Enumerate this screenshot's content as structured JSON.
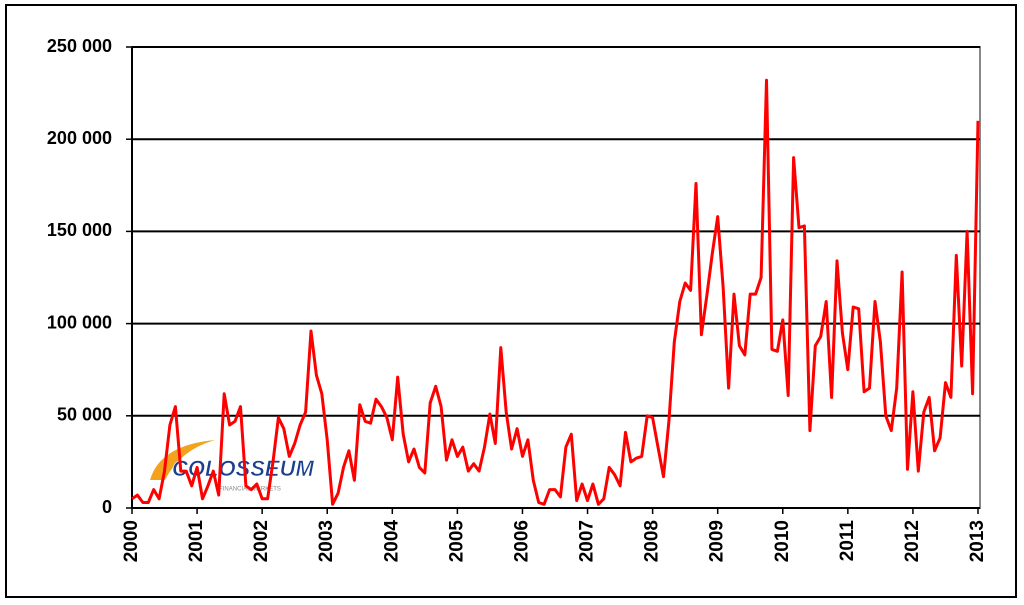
{
  "chart_data": {
    "type": "line",
    "watermark": {
      "name": "COLOSSEUM",
      "tagline": "FINANCIAL MARKETS"
    },
    "xlim": [
      2000,
      2013
    ],
    "xticks": [
      2000,
      2001,
      2002,
      2003,
      2004,
      2005,
      2006,
      2007,
      2008,
      2009,
      2010,
      2011,
      2012,
      2013
    ],
    "ylim": [
      0,
      250000
    ],
    "yticks": [
      0,
      {
        "value": 50000,
        "label": "50 000"
      },
      {
        "value": 100000,
        "label": "100 000"
      },
      {
        "value": 150000,
        "label": "150 000"
      },
      {
        "value": 200000,
        "label": "200 000"
      },
      {
        "value": 250000,
        "label": "250 000"
      }
    ],
    "grid": true,
    "series": [
      {
        "color": "#ff0000",
        "x": [
          2000,
          2000.083,
          2000.167,
          2000.25,
          2000.333,
          2000.417,
          2000.5,
          2000.583,
          2000.667,
          2000.75,
          2000.833,
          2000.917,
          2001,
          2001.083,
          2001.167,
          2001.25,
          2001.333,
          2001.417,
          2001.5,
          2001.583,
          2001.667,
          2001.75,
          2001.833,
          2001.917,
          2002,
          2002.083,
          2002.167,
          2002.25,
          2002.333,
          2002.417,
          2002.5,
          2002.583,
          2002.667,
          2002.75,
          2002.833,
          2002.917,
          2003,
          2003.083,
          2003.167,
          2003.25,
          2003.333,
          2003.417,
          2003.5,
          2003.583,
          2003.667,
          2003.75,
          2003.833,
          2003.917,
          2004,
          2004.083,
          2004.167,
          2004.25,
          2004.333,
          2004.417,
          2004.5,
          2004.583,
          2004.667,
          2004.75,
          2004.833,
          2004.917,
          2005,
          2005.083,
          2005.167,
          2005.25,
          2005.333,
          2005.417,
          2005.5,
          2005.583,
          2005.667,
          2005.75,
          2005.833,
          2005.917,
          2006,
          2006.083,
          2006.167,
          2006.25,
          2006.333,
          2006.417,
          2006.5,
          2006.583,
          2006.667,
          2006.75,
          2006.833,
          2006.917,
          2007,
          2007.083,
          2007.167,
          2007.25,
          2007.333,
          2007.417,
          2007.5,
          2007.583,
          2007.667,
          2007.75,
          2007.833,
          2007.917,
          2008,
          2008.083,
          2008.167,
          2008.25,
          2008.333,
          2008.417,
          2008.5,
          2008.583,
          2008.667,
          2008.75,
          2008.833,
          2008.917,
          2009,
          2009.083,
          2009.167,
          2009.25,
          2009.333,
          2009.417,
          2009.5,
          2009.583,
          2009.667,
          2009.75,
          2009.833,
          2009.917,
          2010,
          2010.083,
          2010.167,
          2010.25,
          2010.333,
          2010.417,
          2010.5,
          2010.583,
          2010.667,
          2010.75,
          2010.833,
          2010.917,
          2011,
          2011.083,
          2011.167,
          2011.25,
          2011.333,
          2011.417,
          2011.5,
          2011.583,
          2011.667,
          2011.75,
          2011.833,
          2011.917,
          2012,
          2012.083,
          2012.167,
          2012.25,
          2012.333,
          2012.417,
          2012.5,
          2012.583,
          2012.667,
          2012.75,
          2012.833,
          2012.917,
          2013
        ],
        "values": [
          5000,
          7000,
          3000,
          3000,
          10000,
          5000,
          20000,
          45000,
          55000,
          20000,
          20000,
          12000,
          22000,
          5000,
          12000,
          20000,
          7000,
          62000,
          45000,
          47000,
          55000,
          12000,
          10000,
          13000,
          5000,
          5000,
          25000,
          49000,
          43000,
          28000,
          35000,
          45000,
          52000,
          96000,
          72000,
          62000,
          37000,
          2000,
          8000,
          22000,
          31000,
          15000,
          56000,
          47000,
          46000,
          59000,
          55000,
          49000,
          37000,
          71000,
          40000,
          25000,
          32000,
          22000,
          19000,
          57000,
          66000,
          55000,
          26000,
          37000,
          28000,
          33000,
          20000,
          24000,
          20000,
          33000,
          51000,
          35000,
          87000,
          52000,
          32000,
          43000,
          28000,
          37000,
          15000,
          3000,
          2000,
          10000,
          10000,
          6000,
          33000,
          40000,
          4000,
          13000,
          4000,
          13000,
          2000,
          5000,
          22000,
          18000,
          12000,
          41000,
          25000,
          27000,
          28000,
          50000,
          49000,
          33000,
          17000,
          47000,
          90000,
          112000,
          122000,
          118000,
          176000,
          94000,
          115000,
          138000,
          158000,
          120000,
          65000,
          116000,
          88000,
          83000,
          116000,
          116000,
          125000,
          232000,
          86000,
          85000,
          102000,
          61000,
          190000,
          152000,
          153000,
          42000,
          88000,
          93000,
          112000,
          60000,
          134000,
          95000,
          75000,
          109000,
          108000,
          63000,
          65000,
          112000,
          90000,
          50000,
          42000,
          65000,
          128000,
          21000,
          63000,
          20000,
          52000,
          60000,
          31000,
          38000,
          68000,
          60000,
          137000,
          77000,
          150000,
          62000,
          210000
        ]
      }
    ]
  }
}
